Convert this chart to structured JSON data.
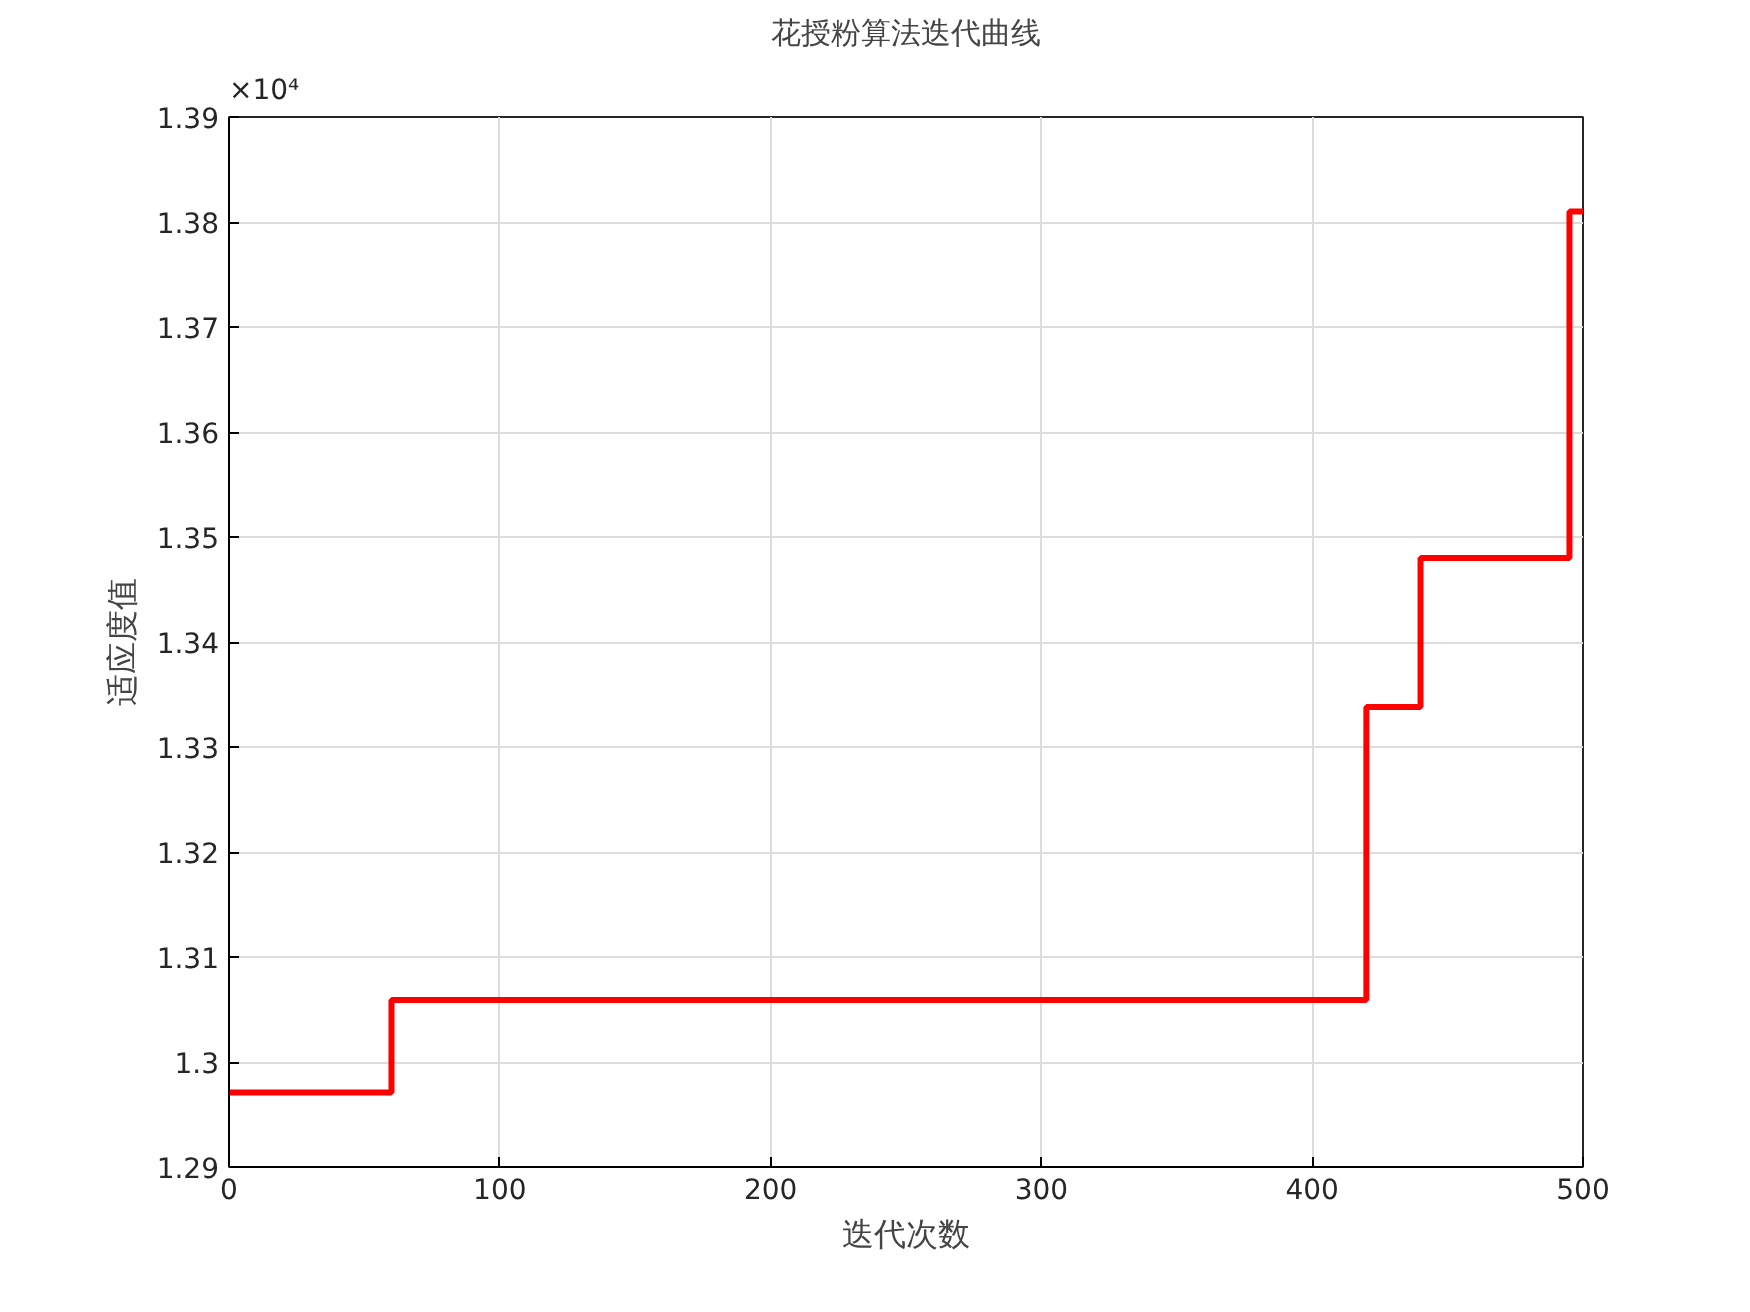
{
  "chart_data": {
    "type": "step",
    "title": "花授粉算法迭代曲线",
    "xlabel": "迭代次数",
    "ylabel": "适应度值",
    "annotations": [
      "×10⁴"
    ],
    "x": [
      0,
      60,
      420,
      440,
      495,
      500
    ],
    "series": [
      {
        "color": "#ff0000",
        "values": [
          1.2971,
          1.3059,
          1.3338,
          1.348,
          1.381,
          1.381
        ]
      }
    ],
    "xlim": [
      0,
      500
    ],
    "xticks": [
      0,
      100,
      200,
      300,
      400,
      500
    ],
    "ylim": [
      1.29,
      1.39
    ],
    "yticks": [
      1.29,
      1.3,
      1.31,
      1.32,
      1.33,
      1.34,
      1.35,
      1.36,
      1.37,
      1.38,
      1.39
    ],
    "grid": true,
    "line_style": "solid"
  }
}
